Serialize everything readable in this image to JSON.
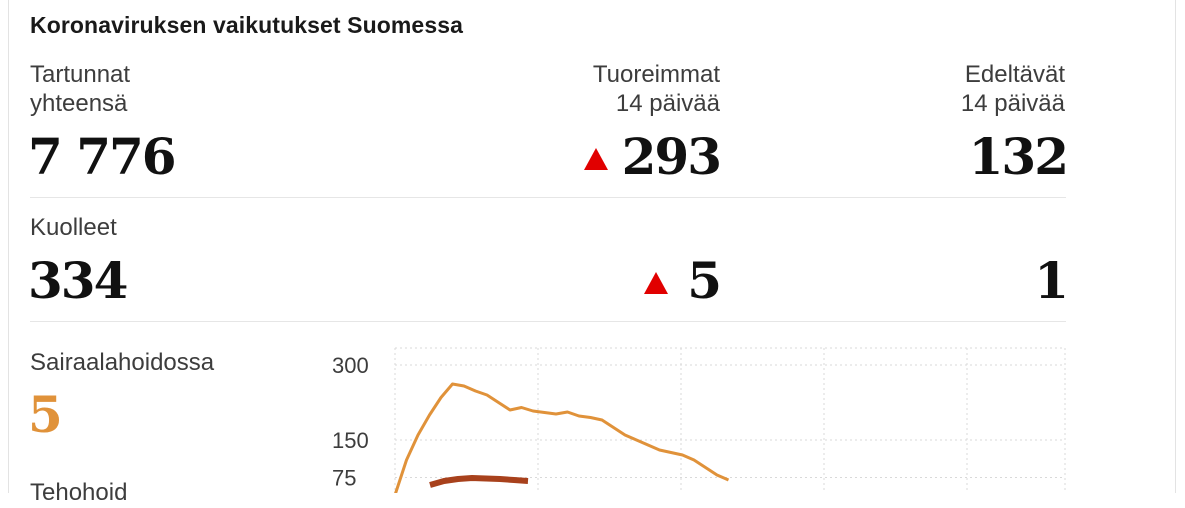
{
  "title": "Koronaviruksen vaikutukset Suomessa",
  "infections": {
    "label_line1": "Tartunnat",
    "label_line2": "yhteensä",
    "total": "7 776",
    "recent_label_line1": "Tuoreimmat",
    "recent_label_line2": "14 päivää",
    "recent_value": "293",
    "previous_label_line1": "Edeltävät",
    "previous_label_line2": "14 päivää",
    "previous_value": "132"
  },
  "deaths": {
    "label": "Kuolleet",
    "total": "334",
    "recent_value": "5",
    "previous_value": "1"
  },
  "hospital": {
    "label": "Sairaalahoidossa",
    "value": "5",
    "next_label_partial": "Tehohoid"
  },
  "colors": {
    "up_arrow": "#e10000",
    "hospital_orange": "#e0923a",
    "icu_red": "#a8411c"
  },
  "chart_data": {
    "type": "line",
    "y_ticks": [
      "300",
      "150",
      "75"
    ],
    "series": [
      {
        "values": [
          40,
          110,
          160,
          200,
          235,
          262,
          258,
          248,
          240,
          225,
          210,
          215,
          208,
          205,
          202,
          206,
          198,
          195,
          190,
          175,
          160,
          150,
          140,
          130,
          125,
          120,
          110,
          95,
          80,
          70
        ]
      },
      {
        "values": [
          60,
          68,
          72,
          74,
          73,
          72,
          70,
          68
        ]
      }
    ]
  }
}
